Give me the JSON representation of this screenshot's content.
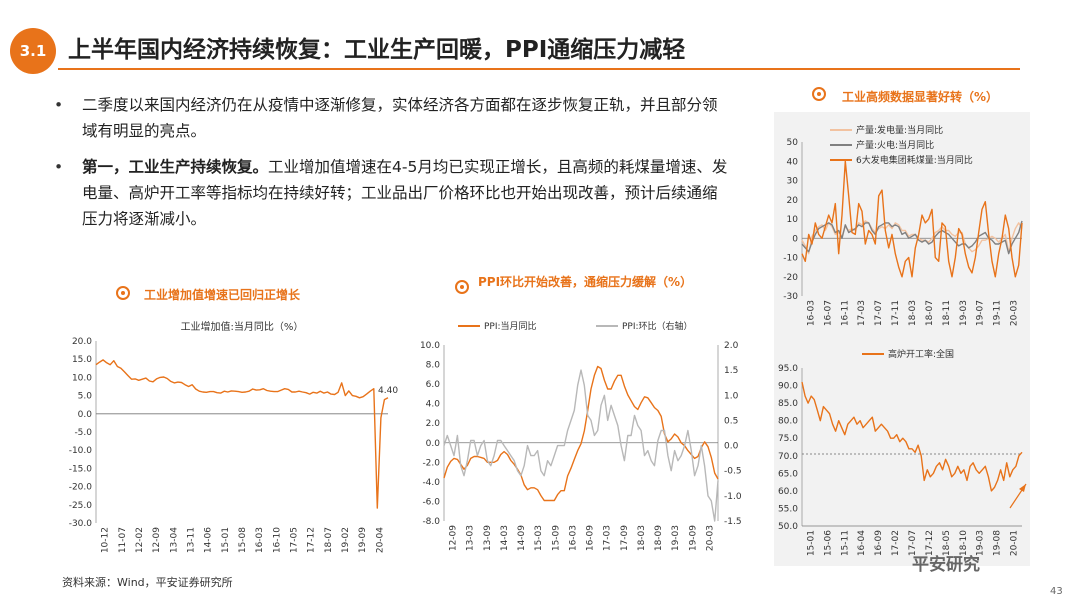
{
  "header": {
    "badge": "3.1",
    "title": "上半年国内经济持续恢复：工业生产回暖，PPI通缩压力减轻"
  },
  "bullets": [
    {
      "bold": "",
      "text": "二季度以来国内经济仍在从疫情中逐渐修复，实体经济各方面都在逐步恢复正轨，并且部分领域有明显的亮点。"
    },
    {
      "bold": "第一，工业生产持续恢复。",
      "text": "工业增加值增速在4-5月均已实现正增长，且高频的耗煤量增速、发电量、高炉开工率等指标均在持续好转；工业品出厂价格环比也开始出现改善，预计后续通缩压力将逐渐减小。"
    }
  ],
  "footer": {
    "source": "资料来源：Wind，平安证券研究所",
    "logo": "平安研究",
    "page": "43"
  },
  "chart_data": [
    {
      "id": "ind",
      "type": "line",
      "panel_title": "工业增加值增速已回归正增长",
      "title": "工业增加值:当月同比（%）",
      "ylim": [
        -30,
        20
      ],
      "yticks": [
        "20.0",
        "15.0",
        "10.0",
        "5.0",
        "0.0",
        "-5.0",
        "-10.0",
        "-15.0",
        "-20.0",
        "-25.0",
        "-30.0"
      ],
      "xticks": [
        "10-12",
        "11-07",
        "12-02",
        "12-09",
        "13-04",
        "13-11",
        "14-06",
        "15-01",
        "15-08",
        "16-03",
        "16-10",
        "17-05",
        "17-12",
        "18-07",
        "19-02",
        "19-09",
        "20-04"
      ],
      "annotation": "4.40",
      "series": [
        {
          "color": "#e8731a",
          "values": [
            13.5,
            14.2,
            14.8,
            14.0,
            13.5,
            14.6,
            13.0,
            12.5,
            11.5,
            10.5,
            9.5,
            9.6,
            9.2,
            9.5,
            9.8,
            9.0,
            8.8,
            9.6,
            10.0,
            10.1,
            9.7,
            8.9,
            8.5,
            8.7,
            8.6,
            8.0,
            7.5,
            8.0,
            6.8,
            6.2,
            6.0,
            5.9,
            6.1,
            6.1,
            5.8,
            5.7,
            6.2,
            6.0,
            6.3,
            6.2,
            6.1,
            5.9,
            6.0,
            6.2,
            6.8,
            6.5,
            6.6,
            6.9,
            6.4,
            6.2,
            6.1,
            6.1,
            6.5,
            6.9,
            6.7,
            6.0,
            6.0,
            6.2,
            6.0,
            5.8,
            5.4,
            5.9,
            5.7,
            6.2,
            5.7,
            6.0,
            5.4,
            5.3,
            5.9,
            8.5,
            5.0,
            6.3,
            5.0,
            4.8,
            4.4,
            4.7,
            5.4,
            6.2,
            6.9,
            -25.9,
            -1.1,
            3.9,
            4.4
          ]
        }
      ]
    },
    {
      "id": "ppi",
      "type": "line",
      "panel_title": "PPI环比开始改善，通缩压力缓解（%）",
      "title": "",
      "ylim": [
        -8,
        10
      ],
      "y2lim": [
        -1.5,
        2
      ],
      "yticks": [
        "10.0",
        "8.0",
        "6.0",
        "4.0",
        "2.0",
        "0.0",
        "-2.0",
        "-4.0",
        "-6.0",
        "-8.0"
      ],
      "y2ticks": [
        "2.0",
        "1.5",
        "1.0",
        "0.5",
        "0.0",
        "-0.5",
        "-1.0",
        "-1.5"
      ],
      "xticks": [
        "12-09",
        "13-03",
        "13-09",
        "14-03",
        "14-09",
        "15-03",
        "15-09",
        "16-03",
        "16-09",
        "17-03",
        "17-09",
        "18-03",
        "18-09",
        "19-03",
        "19-09",
        "20-03"
      ],
      "series": [
        {
          "name": "PPI:当月同比",
          "color": "#e8731a",
          "values": [
            -3.6,
            -2.5,
            -1.9,
            -1.6,
            -1.7,
            -2.2,
            -2.7,
            -2.3,
            -1.6,
            -1.4,
            -1.4,
            -1.5,
            -1.6,
            -2.0,
            -2.0,
            -2.0,
            -1.8,
            -1.2,
            -0.9,
            -1.2,
            -1.8,
            -2.2,
            -2.7,
            -3.3,
            -4.3,
            -4.8,
            -4.6,
            -4.6,
            -4.8,
            -5.4,
            -5.9,
            -5.9,
            -5.9,
            -5.9,
            -5.3,
            -4.9,
            -4.9,
            -3.4,
            -2.6,
            -1.7,
            -0.8,
            -0.1,
            1.2,
            3.3,
            5.5,
            6.9,
            7.8,
            7.6,
            6.4,
            5.5,
            5.5,
            6.3,
            6.9,
            6.9,
            5.8,
            4.9,
            4.3,
            3.7,
            3.4,
            4.1,
            4.7,
            4.6,
            4.1,
            3.6,
            3.3,
            2.7,
            0.9,
            0.1,
            0.4,
            0.9,
            0.6,
            0.0,
            -0.3,
            -0.8,
            -1.2,
            -1.6,
            -1.4,
            -0.5,
            0.1,
            -0.4,
            -1.5,
            -3.1,
            -3.7
          ]
        },
        {
          "name": "PPI:环比（右轴）",
          "axis": "right",
          "color": "#b8b8b8",
          "values": [
            0.0,
            0.2,
            0.0,
            -0.2,
            0.2,
            -0.4,
            -0.6,
            -0.3,
            0.1,
            0.1,
            -0.2,
            0.0,
            0.1,
            -0.3,
            -0.4,
            -0.2,
            0.1,
            0.1,
            0.0,
            -0.1,
            -0.2,
            -0.3,
            -0.5,
            -0.6,
            -0.4,
            0.0,
            -0.2,
            -0.2,
            -0.1,
            -0.5,
            -0.6,
            -0.3,
            -0.4,
            -0.2,
            0.0,
            0.0,
            0.0,
            0.3,
            0.5,
            0.7,
            1.2,
            1.5,
            1.2,
            0.6,
            0.5,
            0.2,
            0.3,
            0.8,
            1.0,
            0.5,
            0.8,
            0.6,
            0.4,
            0.0,
            -0.3,
            0.2,
            0.2,
            0.6,
            0.4,
            0.3,
            -0.2,
            -0.1,
            -0.3,
            -0.4,
            0.1,
            0.3,
            0.3,
            -0.2,
            -0.5,
            -0.1,
            -0.3,
            -0.2,
            0.0,
            0.3,
            -0.1,
            -0.6,
            -0.4,
            0.0,
            -0.4,
            -1.0,
            -1.1,
            -1.5,
            -0.7
          ]
        }
      ]
    },
    {
      "id": "hf",
      "type": "line",
      "panel_title": "工业高频数据显著好转（%）",
      "title": "",
      "ylim": [
        -30,
        50
      ],
      "yticks": [
        "50",
        "40",
        "30",
        "20",
        "10",
        "0",
        "-10",
        "-20",
        "-30"
      ],
      "xticks": [
        "16-03",
        "16-07",
        "16-11",
        "17-03",
        "17-07",
        "17-11",
        "18-03",
        "18-07",
        "18-11",
        "19-03",
        "19-07",
        "19-11",
        "20-03"
      ],
      "series": [
        {
          "name": "产量:发电量:当月同比",
          "color": "#f2c2a0",
          "values": [
            -1,
            -4,
            -8,
            1,
            4,
            6,
            7,
            4,
            8,
            6,
            2,
            3,
            1,
            6,
            4,
            5,
            4,
            8,
            7,
            9,
            8,
            5,
            3,
            5,
            6,
            5,
            7,
            5,
            8,
            7,
            4,
            4,
            1,
            2,
            2,
            0,
            -1,
            -1,
            -2,
            0,
            3,
            4,
            6,
            4,
            4,
            2,
            1,
            3,
            3,
            -3,
            -5,
            -7,
            -6,
            -4,
            -1,
            -1,
            0,
            1,
            0,
            -2,
            0,
            2,
            -7,
            0,
            5,
            8,
            5
          ]
        },
        {
          "name": "产量:火电:当月同比",
          "color": "#808080",
          "values": [
            -3,
            -5,
            -7,
            -2,
            2,
            5,
            6,
            7,
            8,
            7,
            3,
            4,
            0,
            7,
            3,
            4,
            5,
            7,
            6,
            8,
            8,
            4,
            2,
            6,
            7,
            8,
            8,
            6,
            7,
            6,
            2,
            3,
            0,
            1,
            2,
            -1,
            -2,
            -1,
            -3,
            -2,
            1,
            3,
            4,
            3,
            2,
            0,
            -2,
            -4,
            -3,
            -3,
            -5,
            -4,
            -2,
            1,
            2,
            3,
            0,
            -1,
            -3,
            -3,
            -2,
            -1,
            -8,
            -3,
            0,
            3,
            9
          ]
        },
        {
          "name": "6大发电集团耗煤量:当月同比",
          "color": "#e8731a",
          "values": [
            -8,
            -12,
            2,
            -3,
            8,
            2,
            0,
            6,
            12,
            8,
            18,
            -8,
            12,
            40,
            22,
            3,
            2,
            18,
            14,
            -3,
            4,
            2,
            -3,
            22,
            25,
            4,
            -5,
            2,
            -8,
            -15,
            -20,
            -12,
            -10,
            -20,
            -5,
            2,
            12,
            8,
            10,
            15,
            -10,
            -12,
            8,
            6,
            -12,
            -20,
            -10,
            5,
            2,
            -8,
            -15,
            -18,
            -10,
            3,
            15,
            19,
            2,
            -12,
            -20,
            -8,
            0,
            12,
            5,
            -10,
            -20,
            -14,
            8
          ]
        }
      ]
    },
    {
      "id": "bf",
      "type": "line",
      "title": "",
      "ylim": [
        50,
        95
      ],
      "yticks": [
        "95.0",
        "90.0",
        "85.0",
        "80.0",
        "75.0",
        "70.0",
        "65.0",
        "60.0",
        "55.0",
        "50.0"
      ],
      "xticks": [
        "15-01",
        "15-06",
        "15-11",
        "16-04",
        "16-09",
        "17-02",
        "17-07",
        "17-12",
        "18-05",
        "18-10",
        "19-03",
        "19-08",
        "20-01"
      ],
      "ref_line": 70.5,
      "series": [
        {
          "name": "高炉开工率:全国",
          "color": "#e8731a",
          "values": [
            91,
            87,
            85,
            87,
            86,
            83,
            80,
            84,
            83,
            82,
            79,
            77,
            80,
            78,
            76,
            79,
            80,
            81,
            79,
            80,
            78,
            79,
            80,
            81,
            77,
            78,
            79,
            78,
            77,
            75,
            75,
            76,
            74,
            75,
            74,
            72,
            72,
            71,
            73,
            70,
            63,
            66,
            64,
            65,
            67,
            68,
            66,
            69,
            67,
            64,
            65,
            67,
            65,
            66,
            63,
            67,
            68,
            66,
            65,
            66,
            67,
            64,
            60,
            61,
            63,
            66,
            63,
            68,
            64,
            66,
            67,
            70,
            71
          ]
        }
      ]
    }
  ]
}
